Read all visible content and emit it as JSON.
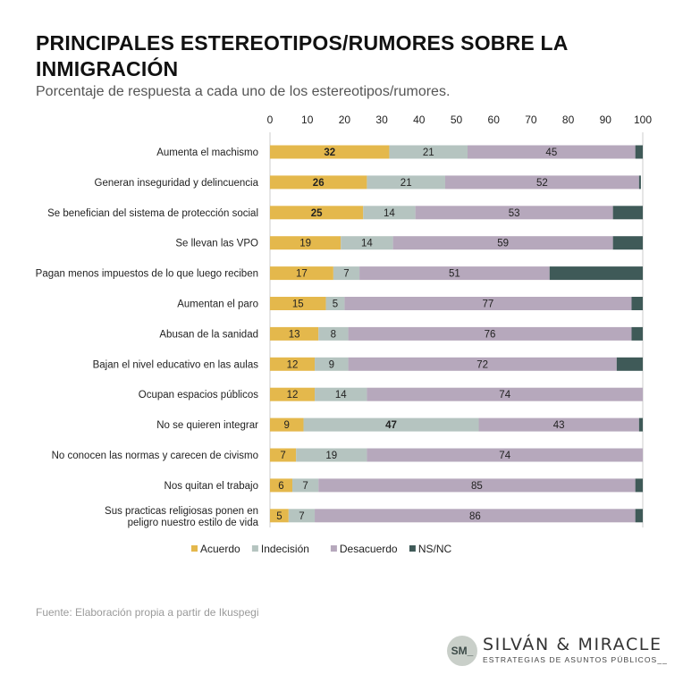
{
  "header": {
    "title": "PRINCIPALES ESTEREOTIPOS/RUMORES SOBRE LA INMIGRACIÓN",
    "subtitle": "Porcentaje de respuesta a cada uno de los estereotipos/rumores."
  },
  "footer": {
    "source": "Fuente: Elaboración propia a partir de Ikuspegi",
    "logo_mark": "SM_",
    "logo_name": "SILVÁN & MIRACLE",
    "logo_tagline": "ESTRATEGIAS DE ASUNTOS PÚBLICOS__"
  },
  "colors": {
    "acuerdo": "#e4b84c",
    "indecision": "#b5c4c0",
    "desacuerdo": "#b6a8bc",
    "nsnc": "#3f5a58"
  },
  "chart_data": {
    "type": "bar",
    "orientation": "horizontal",
    "stacked": true,
    "xlim": [
      0,
      100
    ],
    "xticks": [
      0,
      10,
      20,
      30,
      40,
      50,
      60,
      70,
      80,
      90,
      100
    ],
    "legend_position": "bottom-left",
    "grid": false,
    "categories": [
      "Aumenta el machismo",
      "Generan inseguridad y delincuencia",
      "Se benefician del sistema de protección social",
      "Se llevan las VPO",
      "Pagan menos impuestos de lo que luego reciben",
      "Aumentan el paro",
      "Abusan de la sanidad",
      "Bajan el nivel educativo en las aulas",
      "Ocupan espacios públicos",
      "No se quieren integrar",
      "No conocen las normas y carecen de civismo",
      "Nos quitan el trabajo",
      "Sus practicas religiosas ponen en peligro nuestro estilo de vida"
    ],
    "series": [
      {
        "name": "Acuerdo",
        "values": [
          32,
          26,
          25,
          19,
          17,
          15,
          13,
          12,
          12,
          9,
          7,
          6,
          5
        ],
        "bold_labels": [
          true,
          true,
          true,
          false,
          false,
          false,
          false,
          false,
          false,
          false,
          false,
          false,
          false
        ]
      },
      {
        "name": "Indecisión",
        "values": [
          21,
          21,
          14,
          14,
          7,
          5,
          8,
          9,
          14,
          47,
          19,
          7,
          7
        ],
        "bold_labels": [
          false,
          false,
          false,
          false,
          false,
          false,
          false,
          false,
          false,
          true,
          false,
          false,
          false
        ]
      },
      {
        "name": "Desacuerdo",
        "values": [
          45,
          52,
          53,
          59,
          51,
          77,
          76,
          72,
          74,
          43,
          74,
          85,
          86
        ],
        "bold_labels": [
          false,
          false,
          false,
          false,
          false,
          false,
          false,
          false,
          false,
          false,
          false,
          false,
          false
        ]
      },
      {
        "name": "NS/NC",
        "values": [
          3,
          0.5,
          8,
          9,
          25,
          3,
          3,
          7,
          1,
          1,
          1,
          2,
          3
        ],
        "bold_labels": [
          false,
          false,
          false,
          false,
          false,
          false,
          false,
          false,
          false,
          false,
          false,
          false,
          false
        ],
        "labels_shown": false
      }
    ]
  }
}
